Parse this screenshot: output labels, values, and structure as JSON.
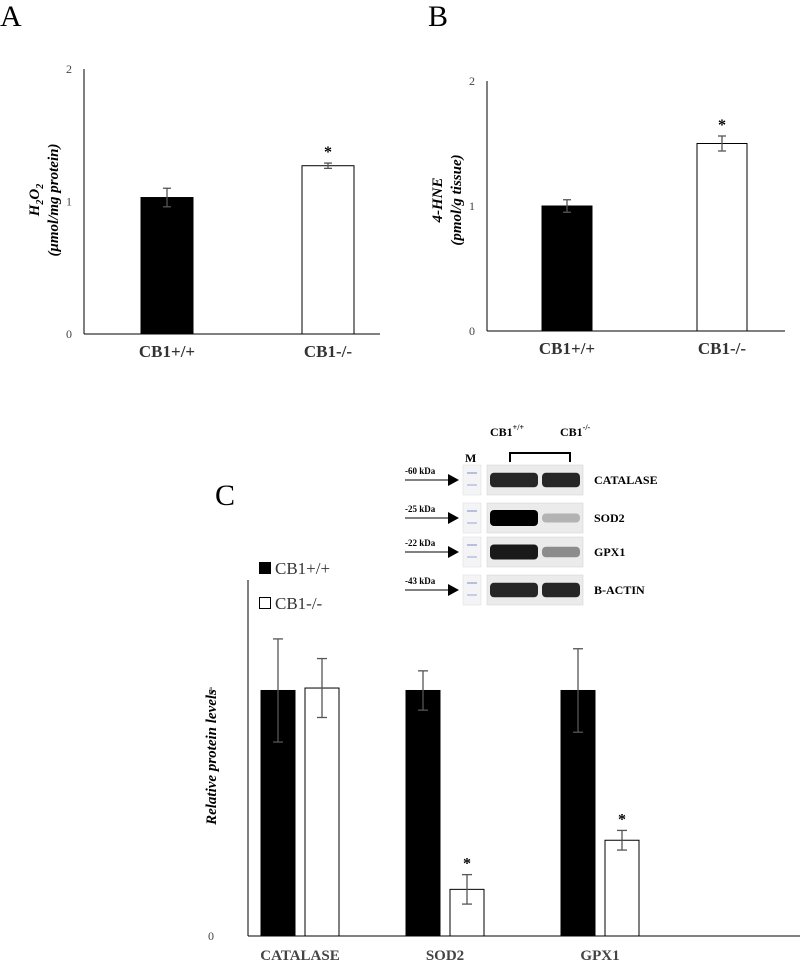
{
  "figure": {
    "panels": [
      {
        "label": "A"
      },
      {
        "label": "B"
      },
      {
        "label": "C"
      }
    ]
  },
  "chart_data": [
    {
      "type": "bar",
      "panel": "A",
      "title": "",
      "ylabel_main": "H",
      "ylabel_sub": "2",
      "ylabel_main2": "O",
      "ylabel_sub2": "2",
      "ylabel_line2": "(μmol/mg protein)",
      "categories": [
        "CB1+/+",
        "CB1-/-"
      ],
      "values": [
        1.03,
        1.27
      ],
      "errors": [
        0.07,
        0.02
      ],
      "fill": [
        "#000000",
        "#ffffff"
      ],
      "significance": [
        "",
        "*"
      ],
      "yticks": [
        "0",
        "1",
        "2"
      ],
      "ylim": [
        0,
        2
      ]
    },
    {
      "type": "bar",
      "panel": "B",
      "title": "",
      "ylabel_line1": "4-HNE",
      "ylabel_line2": "(pmol/g tissue)",
      "categories": [
        "CB1+/+",
        "CB1-/-"
      ],
      "values": [
        1.0,
        1.5
      ],
      "errors": [
        0.05,
        0.06
      ],
      "fill": [
        "#000000",
        "#ffffff"
      ],
      "significance": [
        "",
        "*"
      ],
      "yticks": [
        "0",
        "1",
        "2"
      ],
      "ylim": [
        0,
        2
      ]
    },
    {
      "type": "bar",
      "panel": "C",
      "title": "",
      "ylabel": "Relative protein levels",
      "categories": [
        "CATALASE",
        "SOD2",
        "GPX1"
      ],
      "series": [
        {
          "name": "CB1+/+",
          "values": [
            1.0,
            1.0,
            1.0
          ],
          "errors": [
            0.21,
            0.08,
            0.17
          ],
          "fill": "#000000",
          "significance": [
            "",
            "",
            ""
          ]
        },
        {
          "name": "CB1-/-",
          "values": [
            1.01,
            0.19,
            0.39
          ],
          "errors": [
            0.12,
            0.06,
            0.04
          ],
          "fill": "#ffffff",
          "significance": [
            "",
            "*",
            "*"
          ]
        }
      ],
      "yticks": [
        "0",
        "1"
      ],
      "ylim": [
        0,
        1.45
      ],
      "legend_position": "top-left"
    }
  ],
  "western_blot": {
    "marker_label": "M",
    "group_labels": [
      {
        "base": "CB1",
        "sup": "+/+"
      },
      {
        "base": "CB1",
        "sup": "-/-"
      }
    ],
    "rows": [
      {
        "kda": "60 kDa",
        "protein": "CATALASE",
        "band_left": 0.85,
        "band_right": 0.85
      },
      {
        "kda": "25 kDa",
        "protein": "SOD2",
        "band_left": 1.0,
        "band_right": 0.3
      },
      {
        "kda": "22 kDa",
        "protein": "GPX1",
        "band_left": 0.9,
        "band_right": 0.45
      },
      {
        "kda": "43 kDa",
        "protein": "B-ACTIN",
        "band_left": 0.85,
        "band_right": 0.85
      }
    ]
  }
}
